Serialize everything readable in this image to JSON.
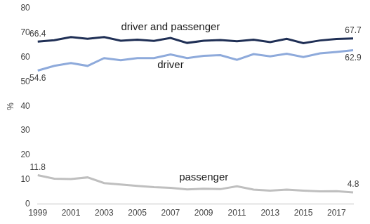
{
  "chart_data": {
    "type": "line",
    "y_label": "%",
    "categories": [
      "1999",
      null,
      "2001",
      null,
      "2003",
      null,
      "2005",
      null,
      "2007",
      null,
      "2009",
      null,
      "2011",
      null,
      "2013",
      null,
      "2015",
      null,
      "2017",
      null
    ],
    "series": [
      {
        "name": "driver and passenger",
        "color": "#1f2f55",
        "values": [
          66.4,
          67.0,
          68.3,
          67.6,
          68.3,
          66.8,
          67.2,
          66.7,
          67.9,
          65.9,
          66.8,
          67.1,
          66.6,
          67.2,
          66.2,
          67.6,
          65.8,
          66.9,
          67.5,
          67.7
        ],
        "value_labels": [
          "66.4",
          null,
          null,
          null,
          null,
          null,
          null,
          null,
          null,
          null,
          null,
          null,
          null,
          null,
          null,
          null,
          null,
          null,
          null,
          "67.7"
        ]
      },
      {
        "name": "driver",
        "color": "#8eaadb",
        "values": [
          54.6,
          56.5,
          57.7,
          56.5,
          59.7,
          58.8,
          59.7,
          59.7,
          61.2,
          59.7,
          60.6,
          60.9,
          59.0,
          61.3,
          60.4,
          61.5,
          60.1,
          61.6,
          62.2,
          62.9
        ],
        "value_labels": [
          "54.6",
          null,
          null,
          null,
          null,
          null,
          null,
          null,
          null,
          null,
          null,
          null,
          null,
          null,
          null,
          null,
          null,
          null,
          null,
          "62.9"
        ]
      },
      {
        "name": "passenger",
        "color": "#bfbfbf",
        "values": [
          11.8,
          10.4,
          10.2,
          10.9,
          8.6,
          8.0,
          7.4,
          6.9,
          6.6,
          6.0,
          6.3,
          6.1,
          7.3,
          5.9,
          5.5,
          5.9,
          5.5,
          5.2,
          5.3,
          4.8
        ],
        "value_labels": [
          "11.8",
          null,
          null,
          null,
          null,
          null,
          null,
          null,
          null,
          null,
          null,
          null,
          null,
          null,
          null,
          null,
          null,
          null,
          null,
          "4.8"
        ]
      }
    ],
    "ylim": [
      0,
      80
    ],
    "yticks": [
      0,
      10,
      20,
      30,
      40,
      50,
      60,
      70,
      80
    ],
    "grid": false
  }
}
